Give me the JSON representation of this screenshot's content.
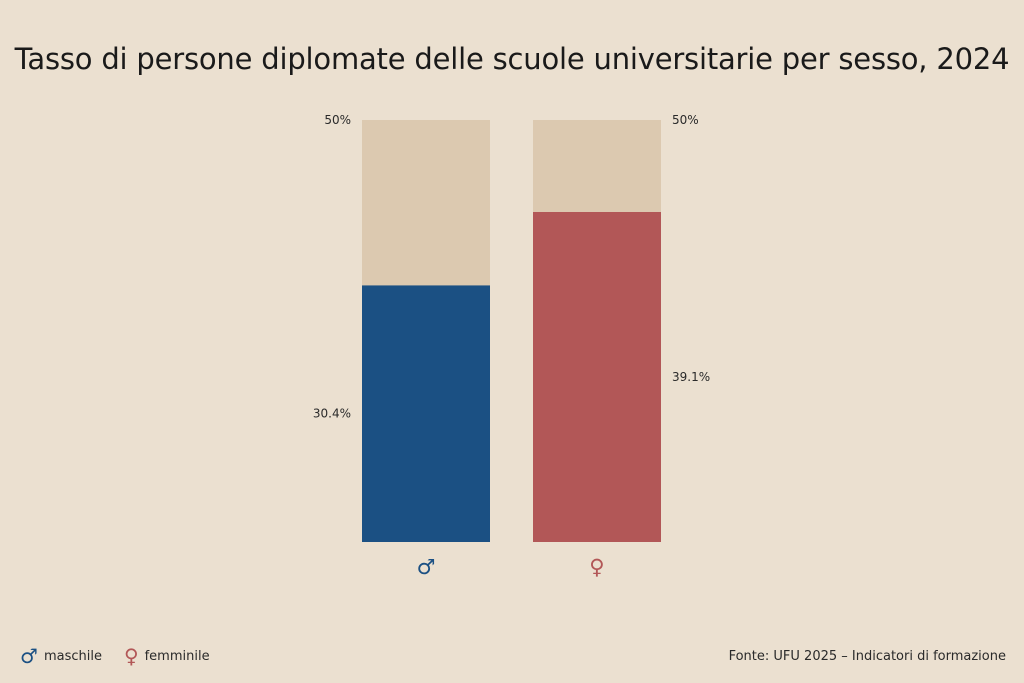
{
  "colors": {
    "background": "#ebe0d0",
    "track": "#dcc9b0",
    "male": "#1b5083",
    "female": "#b25757"
  },
  "chart_data": {
    "type": "bar",
    "title": "Tasso di persone diplomate delle scuole universitarie per sesso, 2024",
    "categories": [
      "♂",
      "♀"
    ],
    "values": [
      30.4,
      39.1
    ],
    "value_labels": [
      "30.4%",
      "39.1%"
    ],
    "track_value": 50,
    "track_labels": [
      "50%",
      "50%"
    ],
    "ylim": [
      0,
      50
    ],
    "grid": false,
    "legend": [
      {
        "symbol": "♂",
        "label": "maschile",
        "color": "#1b5083"
      },
      {
        "symbol": "♀",
        "label": "femminile",
        "color": "#b25757"
      }
    ],
    "legend_position": "bottom-left"
  },
  "source": "Fonte: UFU 2025 – Indicatori di formazione"
}
